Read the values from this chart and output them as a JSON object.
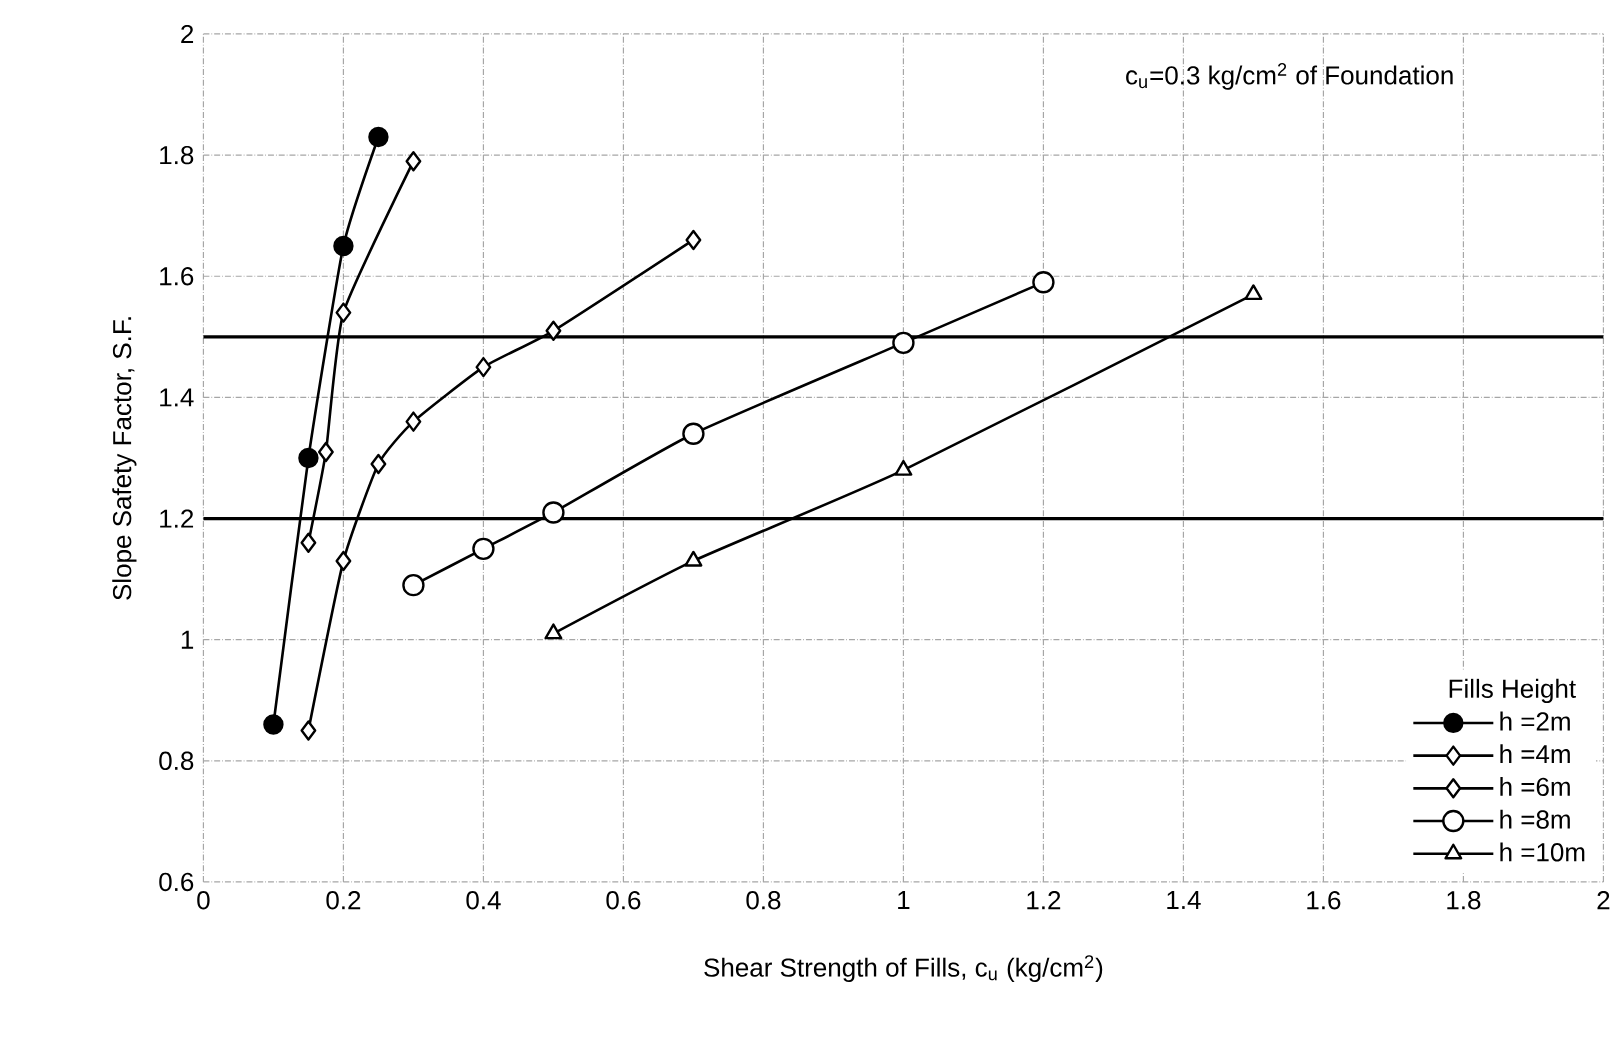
{
  "chart_data": {
    "type": "line",
    "xlabel": "Shear Strength of Fills, c$_{u}$ (kg/cm$^{2}$)",
    "ylabel": "Slope Safety Factor, S.F.",
    "legend_title": "Fills Height",
    "annotations": [
      "c$_{u}$=0.3 kg/cm$^{2}$ of Foundation"
    ],
    "xlim": [
      0,
      2
    ],
    "xticks": [
      0,
      0.2,
      0.4,
      0.6,
      0.8,
      1,
      1.2,
      1.4,
      1.6,
      1.8,
      2
    ],
    "ylim": [
      0.6,
      2
    ],
    "yticks": [
      0.6,
      0.8,
      1,
      1.2,
      1.4,
      1.6,
      1.8,
      2
    ],
    "grid": true,
    "legend": "bottom right",
    "ref_lines": [
      {
        "axis": "y",
        "value": 1.5,
        "color": "#000000"
      },
      {
        "axis": "y",
        "value": 1.2,
        "color": "#000000"
      }
    ],
    "series": [
      {
        "name": "h =2m",
        "color": "#000000",
        "marker": "circle",
        "x": [
          0.1,
          0.15,
          0.2,
          0.25
        ],
        "values": [
          0.86,
          1.3,
          1.65,
          1.83
        ]
      },
      {
        "name": "h =4m",
        "color": "#000000",
        "marker": "diamond",
        "x": [
          0.15,
          0.175,
          0.2,
          0.3
        ],
        "values": [
          1.16,
          1.31,
          1.54,
          1.79
        ]
      },
      {
        "name": "h =6m",
        "color": "#000000",
        "marker": "diamond",
        "x": [
          0.15,
          0.2,
          0.25,
          0.3,
          0.4,
          0.5,
          0.7
        ],
        "values": [
          0.85,
          1.13,
          1.29,
          1.36,
          1.45,
          1.51,
          1.66
        ]
      },
      {
        "name": "h =8m",
        "color": "#000000",
        "marker": "circle",
        "x": [
          0.3,
          0.4,
          0.5,
          0.7,
          1,
          1.2
        ],
        "values": [
          1.09,
          1.15,
          1.21,
          1.34,
          1.49,
          1.59
        ]
      },
      {
        "name": "h =10m",
        "color": "#000000",
        "marker": "triangle",
        "x": [
          0.5,
          0.7,
          1,
          1.5
        ],
        "values": [
          1.01,
          1.13,
          1.28,
          1.57
        ]
      }
    ]
  }
}
